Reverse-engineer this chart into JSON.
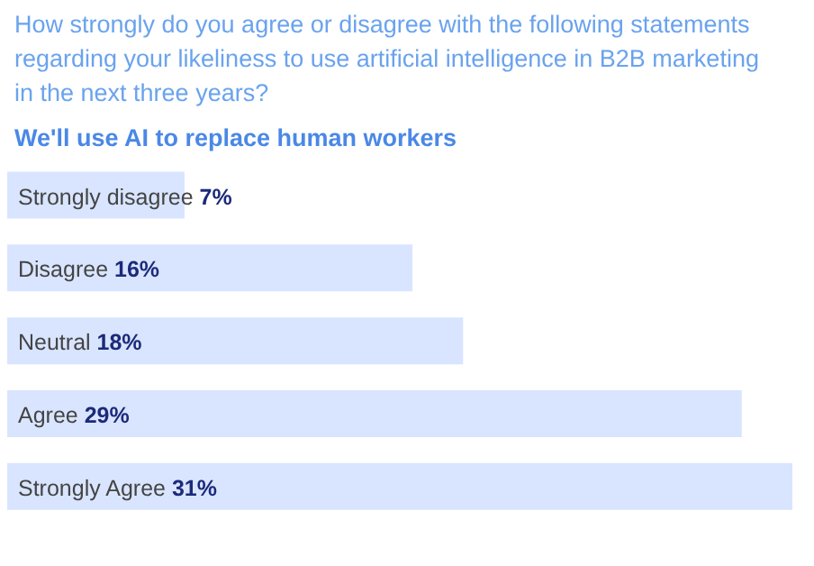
{
  "chart_data": {
    "type": "bar",
    "orientation": "horizontal",
    "title": "How strongly do you agree or disagree with the following statements regarding your likeliness to use artificial intelligence in B2B marketing in the next three years?",
    "subtitle": "We'll use AI to replace human workers",
    "categories": [
      "Strongly disagree",
      "Disagree",
      "Neutral",
      "Agree",
      "Strongly Agree"
    ],
    "values": [
      7,
      16,
      18,
      29,
      31
    ],
    "color": "#d9e5ff",
    "data_labels": true,
    "value_labels": [
      "7%",
      "16%",
      "18%",
      "29%",
      "31%"
    ],
    "tick_labels": false,
    "grid": false
  }
}
